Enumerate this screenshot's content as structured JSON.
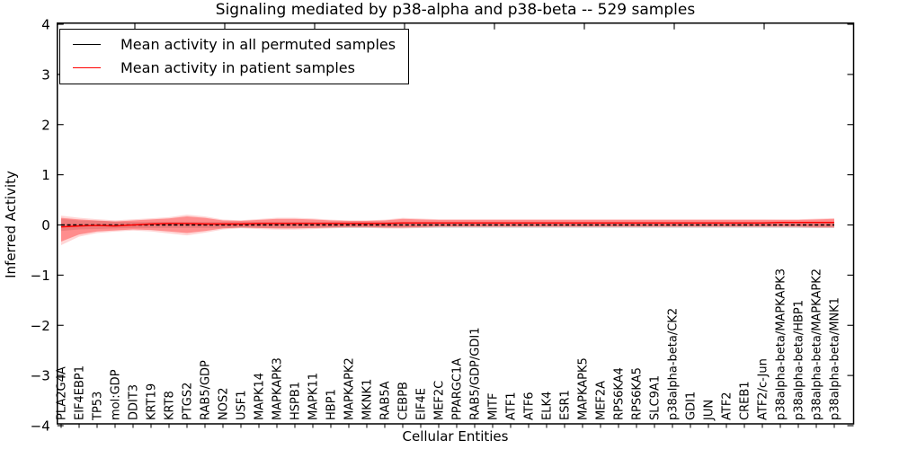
{
  "chart_data": {
    "type": "line",
    "title": "Signaling mediated by p38-alpha and p38-beta -- 529 samples",
    "xlabel": "Cellular Entities",
    "ylabel": "Inferred Activity",
    "ylim": [
      -4,
      4
    ],
    "yticks": [
      -4,
      -3,
      -2,
      -1,
      0,
      1,
      2,
      3,
      4
    ],
    "ytick_labels": [
      "−4",
      "−3",
      "−2",
      "−1",
      "0",
      "1",
      "2",
      "3",
      "4"
    ],
    "grid": false,
    "legend_position": "upper left",
    "legend": [
      {
        "label": "Mean activity in all permuted samples",
        "color": "#000000"
      },
      {
        "label": "Mean activity in patient samples",
        "color": "#ff0000"
      }
    ],
    "colors": {
      "permuted_line": "#000000",
      "patient_line": "#ff0000",
      "patient_band": "#ff0000",
      "permuted_band": "#999999",
      "axis": "#000000"
    },
    "categories": [
      "PLA2G4A",
      "EIF4EBP1",
      "TP53",
      "mol:GDP",
      "DDIT3",
      "KRT19",
      "KRT8",
      "PTGS2",
      "RAB5/GDP",
      "NOS2",
      "USF1",
      "MAPK14",
      "MAPKAPK3",
      "HSPB1",
      "MAPK11",
      "HBP1",
      "MAPKAPK2",
      "MKNK1",
      "RAB5A",
      "CEBPB",
      "EIF4E",
      "MEF2C",
      "PPARGC1A",
      "RAB5/GDP/GDI1",
      "MITF",
      "ATF1",
      "ATF6",
      "ELK4",
      "ESR1",
      "MAPKAPK5",
      "MEF2A",
      "RPS6KA4",
      "RPS6KA5",
      "SLC9A1",
      "p38alpha-beta/CK2",
      "GDI1",
      "JUN",
      "ATF2",
      "CREB1",
      "ATF2/c-Jun",
      "p38alpha-beta/MAPKAPK3",
      "p38alpha-beta/HBP1",
      "p38alpha-beta/MAPKAPK2",
      "p38alpha-beta/MNK1"
    ],
    "series": [
      {
        "name": "Mean activity in all permuted samples",
        "values": [
          0,
          0,
          0,
          0,
          0,
          0,
          0,
          0,
          0,
          0,
          0,
          0,
          0,
          0,
          0,
          0,
          0,
          0,
          0,
          0,
          0,
          0,
          0,
          0,
          0,
          0,
          0,
          0,
          0,
          0,
          0,
          0,
          0,
          0,
          0,
          0,
          0,
          0,
          0,
          0,
          0,
          0,
          0,
          0
        ],
        "band_upper": [
          0.12,
          0.09,
          0.08,
          0.07,
          0.06,
          0.06,
          0.06,
          0.06,
          0.06,
          0.06,
          0.06,
          0.06,
          0.06,
          0.06,
          0.06,
          0.06,
          0.06,
          0.06,
          0.06,
          0.06,
          0.06,
          0.06,
          0.06,
          0.06,
          0.06,
          0.06,
          0.06,
          0.06,
          0.06,
          0.06,
          0.06,
          0.06,
          0.06,
          0.06,
          0.06,
          0.06,
          0.06,
          0.06,
          0.06,
          0.06,
          0.06,
          0.06,
          0.06,
          0.06
        ],
        "band_lower": [
          -0.12,
          -0.09,
          -0.08,
          -0.07,
          -0.06,
          -0.06,
          -0.06,
          -0.06,
          -0.06,
          -0.06,
          -0.06,
          -0.06,
          -0.06,
          -0.06,
          -0.06,
          -0.06,
          -0.06,
          -0.06,
          -0.06,
          -0.06,
          -0.06,
          -0.06,
          -0.06,
          -0.06,
          -0.06,
          -0.06,
          -0.06,
          -0.06,
          -0.06,
          -0.06,
          -0.06,
          -0.06,
          -0.06,
          -0.06,
          -0.06,
          -0.06,
          -0.06,
          -0.06,
          -0.06,
          -0.06,
          -0.06,
          -0.06,
          -0.06,
          -0.06
        ]
      },
      {
        "name": "Mean activity in patient samples",
        "values": [
          -0.04,
          -0.02,
          -0.01,
          -0.02,
          0.0,
          0.02,
          0.03,
          0.03,
          0.02,
          0.02,
          0.02,
          0.03,
          0.03,
          0.03,
          0.03,
          0.03,
          0.03,
          0.03,
          0.03,
          0.04,
          0.04,
          0.04,
          0.04,
          0.04,
          0.04,
          0.04,
          0.04,
          0.04,
          0.04,
          0.04,
          0.04,
          0.04,
          0.04,
          0.04,
          0.04,
          0.04,
          0.04,
          0.04,
          0.04,
          0.04,
          0.05,
          0.05,
          0.05,
          0.05
        ],
        "band_upper": [
          0.14,
          0.11,
          0.09,
          0.07,
          0.09,
          0.11,
          0.13,
          0.17,
          0.14,
          0.09,
          0.08,
          0.1,
          0.12,
          0.12,
          0.11,
          0.09,
          0.08,
          0.08,
          0.09,
          0.12,
          0.11,
          0.1,
          0.1,
          0.1,
          0.1,
          0.1,
          0.1,
          0.1,
          0.1,
          0.1,
          0.1,
          0.1,
          0.1,
          0.1,
          0.1,
          0.1,
          0.1,
          0.1,
          0.1,
          0.1,
          0.1,
          0.1,
          0.11,
          0.12
        ],
        "band_lower": [
          -0.33,
          -0.19,
          -0.13,
          -0.11,
          -0.09,
          -0.1,
          -0.13,
          -0.16,
          -0.12,
          -0.07,
          -0.05,
          -0.06,
          -0.07,
          -0.07,
          -0.06,
          -0.05,
          -0.04,
          -0.04,
          -0.05,
          -0.05,
          -0.04,
          -0.03,
          -0.03,
          -0.03,
          -0.03,
          -0.03,
          -0.03,
          -0.03,
          -0.03,
          -0.03,
          -0.03,
          -0.03,
          -0.03,
          -0.03,
          -0.03,
          -0.03,
          -0.03,
          -0.03,
          -0.03,
          -0.03,
          -0.03,
          -0.03,
          -0.04,
          -0.04
        ]
      }
    ]
  }
}
